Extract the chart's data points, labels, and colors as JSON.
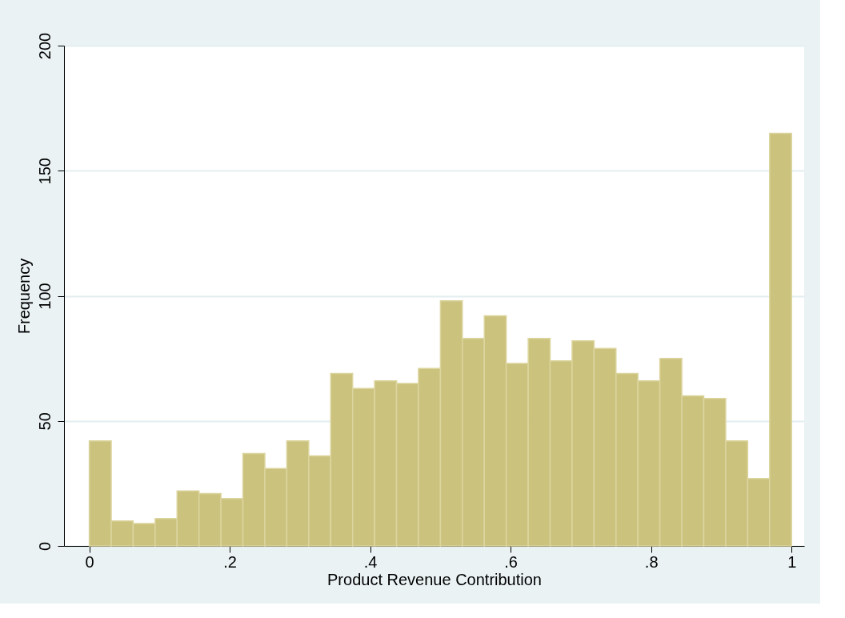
{
  "chart_data": {
    "type": "histogram",
    "xlabel": "Product Revenue Contribution",
    "ylabel": "Frequency",
    "bins": [
      0,
      0.03125,
      0.0625,
      0.09375,
      0.125,
      0.15625,
      0.1875,
      0.21875,
      0.25,
      0.28125,
      0.3125,
      0.34375,
      0.375,
      0.40625,
      0.4375,
      0.46875,
      0.5,
      0.53125,
      0.5625,
      0.59375,
      0.625,
      0.65625,
      0.6875,
      0.71875,
      0.75,
      0.78125,
      0.8125,
      0.84375,
      0.875,
      0.90625,
      0.9375,
      0.96875,
      1
    ],
    "values": [
      42,
      10,
      9,
      11,
      22,
      21,
      19,
      37,
      31,
      42,
      36,
      69,
      63,
      66,
      65,
      71,
      98,
      83,
      92,
      73,
      83,
      74,
      82,
      79,
      69,
      66,
      75,
      60,
      59,
      42,
      27,
      165
    ],
    "color": "#cbc27e",
    "xlim": [
      -0.036,
      1.018
    ],
    "ylim": [
      0,
      200
    ],
    "xticks": [
      0,
      {
        "value": 0.2,
        "label": ".2"
      },
      {
        "value": 0.4,
        "label": ".4"
      },
      {
        "value": 0.6,
        "label": ".6"
      },
      {
        "value": 0.8,
        "label": ".8"
      },
      1
    ],
    "yticks": [
      0,
      50,
      100,
      150,
      200
    ],
    "grid": "y"
  }
}
